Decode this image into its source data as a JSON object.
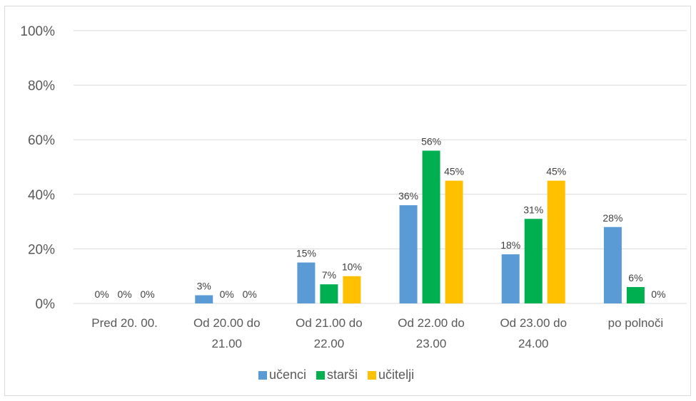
{
  "chart_data": {
    "type": "bar",
    "title": "",
    "xlabel": "",
    "ylabel": "",
    "ylim": [
      0,
      100
    ],
    "yticks": [
      "0%",
      "20%",
      "40%",
      "60%",
      "80%",
      "100%"
    ],
    "ytick_values": [
      0,
      20,
      40,
      60,
      80,
      100
    ],
    "categories": [
      [
        "Pred 20. 00."
      ],
      [
        "Od 20.00 do",
        "21.00"
      ],
      [
        "Od 21.00 do",
        "22.00"
      ],
      [
        "Od 22.00 do",
        "23.00"
      ],
      [
        "Od 23.00 do",
        "24.00"
      ],
      [
        "po polnoči"
      ]
    ],
    "series": [
      {
        "name": "učenci",
        "color": "#5b9bd5",
        "values": [
          0,
          3,
          15,
          36,
          18,
          28
        ],
        "labels": [
          "0%",
          "3%",
          "15%",
          "36%",
          "18%",
          "28%"
        ]
      },
      {
        "name": "starši",
        "color": "#00b050",
        "values": [
          0,
          0,
          7,
          56,
          31,
          6
        ],
        "labels": [
          "0%",
          "0%",
          "7%",
          "56%",
          "31%",
          "6%"
        ]
      },
      {
        "name": "učitelji",
        "color": "#ffc000",
        "values": [
          0,
          0,
          10,
          45,
          45,
          0
        ],
        "labels": [
          "0%",
          "0%",
          "10%",
          "45%",
          "45%",
          "0%"
        ]
      }
    ],
    "grid": true,
    "legend_position": "bottom"
  }
}
